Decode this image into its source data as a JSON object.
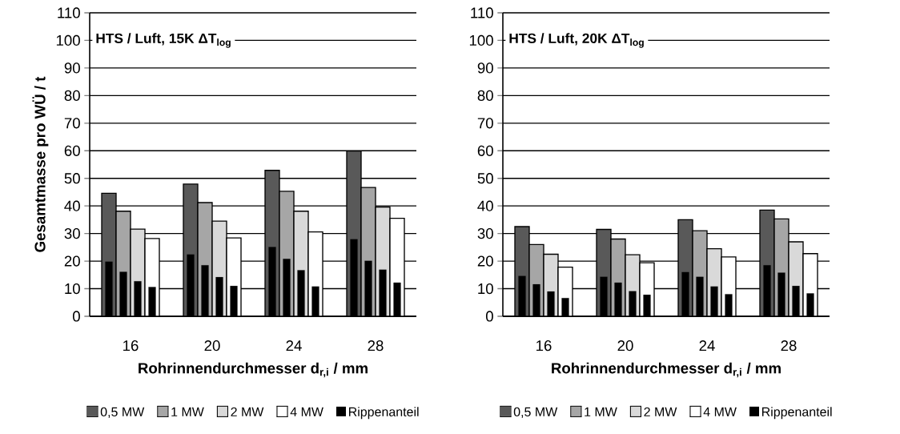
{
  "chart_data": [
    {
      "type": "bar",
      "title": "**HTS / Luft, 15K ΔT$_{log}$**",
      "xlabel": "**Rohrinnendurchmesser d$_{r,i}$ / mm**",
      "ylabel": "**Gesamtmasse pro WÜ / t**",
      "categories": [
        "16",
        "20",
        "24",
        "28"
      ],
      "ylim": [
        0,
        110
      ],
      "yticks": [
        0,
        10,
        20,
        30,
        40,
        50,
        60,
        70,
        80,
        90,
        100,
        110
      ],
      "grid": "y",
      "legend": "bottom",
      "series": [
        {
          "name": "0,5 MW",
          "color": "#595959",
          "values": [
            44.6,
            47.9,
            52.9,
            59.9
          ]
        },
        {
          "name": "1 MW",
          "color": "#a6a6a6",
          "values": [
            38.1,
            41.2,
            45.3,
            46.7
          ]
        },
        {
          "name": "2 MW",
          "color": "#d9d9d9",
          "values": [
            31.6,
            34.5,
            38.1,
            39.6
          ]
        },
        {
          "name": "4 MW",
          "color": "#ffffff",
          "values": [
            28.2,
            28.4,
            30.6,
            35.5
          ]
        },
        {
          "name": "Rippenanteil",
          "color": "#000000",
          "values": [
            19.8,
            22.4,
            25.1,
            27.9
          ]
        },
        {
          "color": "#000000",
          "values": [
            16.1,
            18.5,
            20.8,
            20.1
          ]
        },
        {
          "color": "#000000",
          "values": [
            12.7,
            14.2,
            16.7,
            16.9
          ]
        },
        {
          "color": "#000000",
          "values": [
            10.6,
            11.0,
            10.8,
            12.2
          ]
        }
      ]
    },
    {
      "type": "bar",
      "title": "**HTS / Luft, 20K ΔT$_{log}$**",
      "xlabel": "**Rohrinnendurchmesser d$_{r,i}$ / mm**",
      "categories": [
        "16",
        "20",
        "24",
        "28"
      ],
      "ylim": [
        0,
        110
      ],
      "yticks": [
        0,
        10,
        20,
        30,
        40,
        50,
        60,
        70,
        80,
        90,
        100,
        110
      ],
      "grid": "y",
      "legend": "bottom",
      "series": [
        {
          "name": "0,5 MW",
          "color": "#595959",
          "values": [
            32.5,
            31.5,
            35.0,
            38.5
          ]
        },
        {
          "name": "1 MW",
          "color": "#a6a6a6",
          "values": [
            26.0,
            28.0,
            31.0,
            35.3
          ]
        },
        {
          "name": "2 MW",
          "color": "#d9d9d9",
          "values": [
            22.5,
            22.3,
            24.5,
            27.0
          ]
        },
        {
          "name": "4 MW",
          "color": "#ffffff",
          "values": [
            17.8,
            19.4,
            21.5,
            22.7
          ]
        },
        {
          "name": "Rippenanteil",
          "color": "#000000",
          "values": [
            14.6,
            14.3,
            16.0,
            18.5
          ]
        },
        {
          "color": "#000000",
          "values": [
            11.6,
            12.2,
            14.3,
            15.8
          ]
        },
        {
          "color": "#000000",
          "values": [
            9.0,
            9.1,
            10.8,
            11.0
          ]
        },
        {
          "color": "#000000",
          "values": [
            6.6,
            7.8,
            8.0,
            8.3
          ]
        }
      ]
    }
  ]
}
